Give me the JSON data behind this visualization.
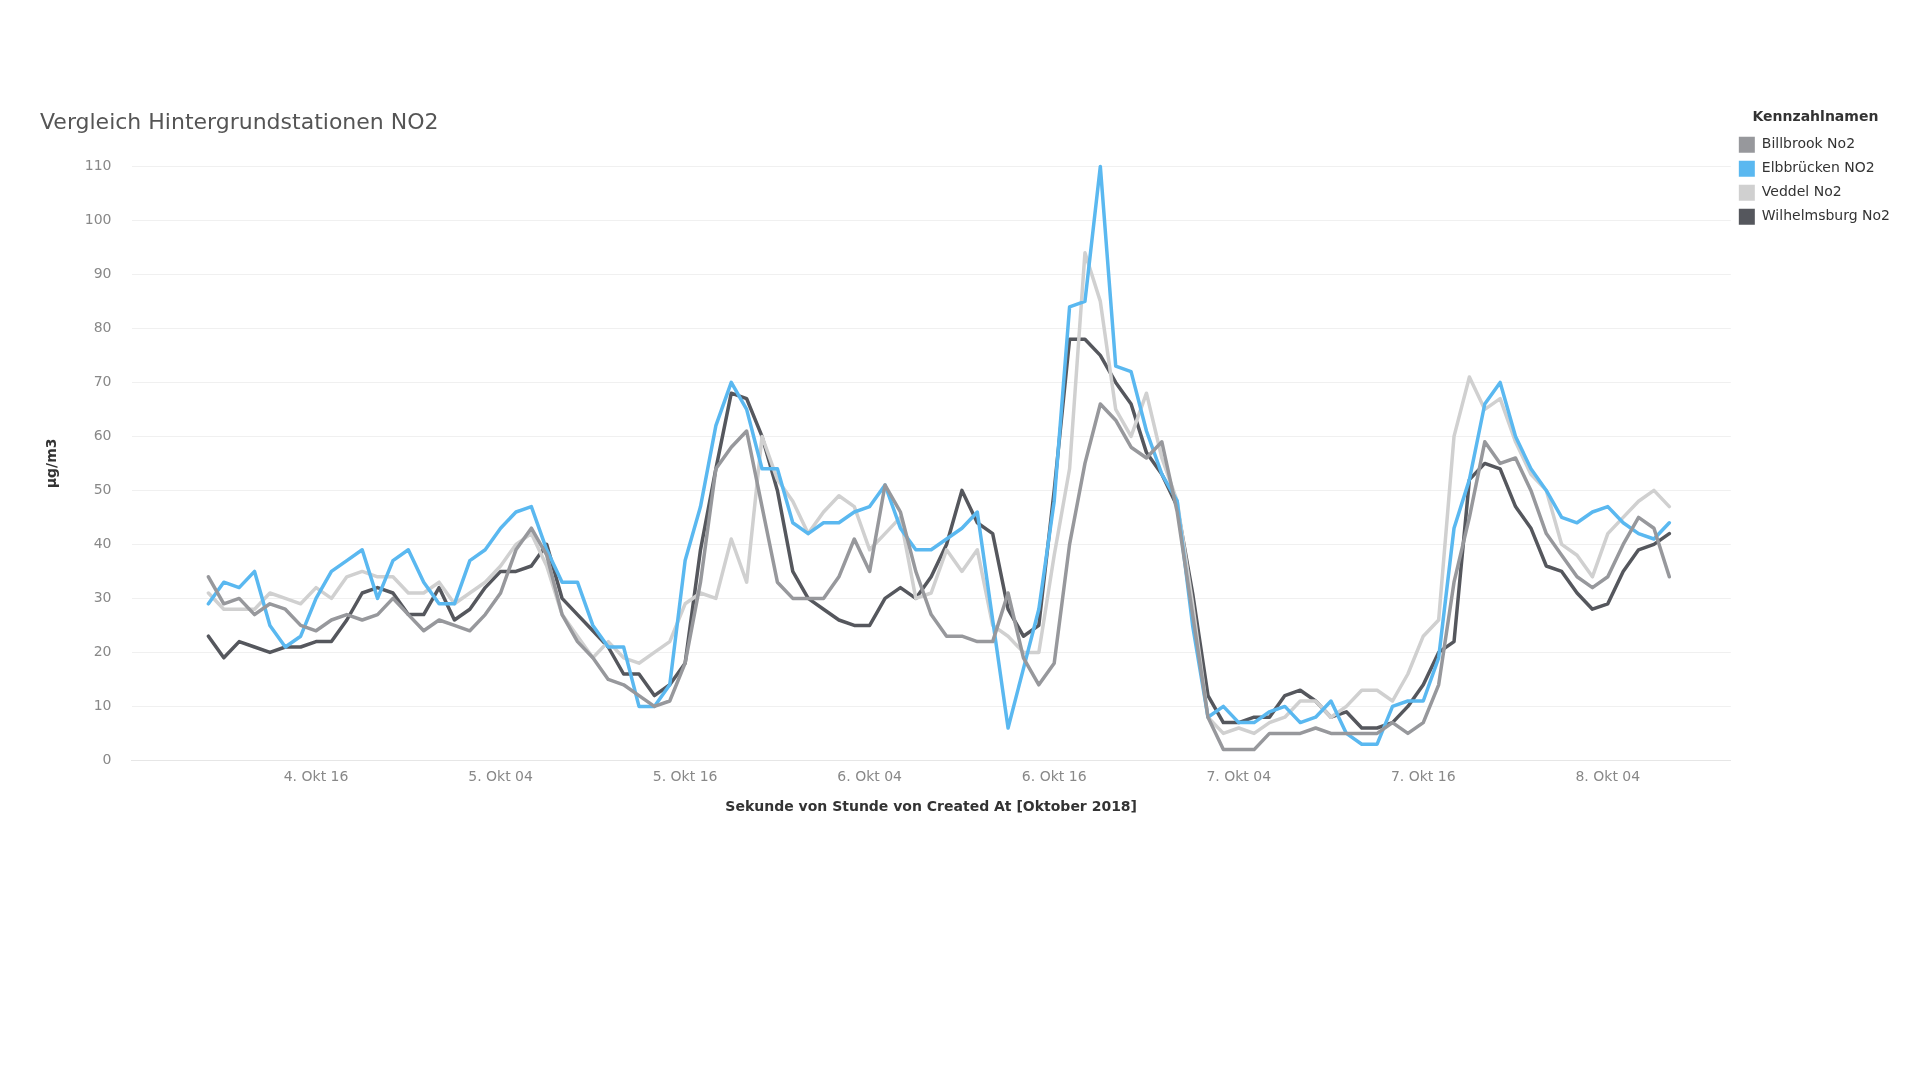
{
  "chart_data": {
    "type": "line",
    "title": "Vergleich Hintergrundstationen NO2",
    "xlabel": "Sekunde von Stunde von Created At [Oktober 2018]",
    "ylabel": "µg/m3",
    "legend_title": "Kennzahlnamen",
    "legend": "top right",
    "grid": "y",
    "marker": "none",
    "line_style": "solid",
    "x": [
      "2018-10-04T09:00",
      "2018-10-04T10:00",
      "2018-10-04T11:00",
      "2018-10-04T12:00",
      "2018-10-04T13:00",
      "2018-10-04T14:00",
      "2018-10-04T15:00",
      "2018-10-04T16:00",
      "2018-10-04T17:00",
      "2018-10-04T18:00",
      "2018-10-04T19:00",
      "2018-10-04T20:00",
      "2018-10-04T21:00",
      "2018-10-04T22:00",
      "2018-10-04T23:00",
      "2018-10-05T00:00",
      "2018-10-05T01:00",
      "2018-10-05T02:00",
      "2018-10-05T03:00",
      "2018-10-05T04:00",
      "2018-10-05T05:00",
      "2018-10-05T06:00",
      "2018-10-05T07:00",
      "2018-10-05T08:00",
      "2018-10-05T09:00",
      "2018-10-05T10:00",
      "2018-10-05T11:00",
      "2018-10-05T12:00",
      "2018-10-05T13:00",
      "2018-10-05T14:00",
      "2018-10-05T15:00",
      "2018-10-05T16:00",
      "2018-10-05T17:00",
      "2018-10-05T18:00",
      "2018-10-05T19:00",
      "2018-10-05T20:00",
      "2018-10-05T21:00",
      "2018-10-05T22:00",
      "2018-10-05T23:00",
      "2018-10-06T00:00",
      "2018-10-06T01:00",
      "2018-10-06T02:00",
      "2018-10-06T03:00",
      "2018-10-06T04:00",
      "2018-10-06T05:00",
      "2018-10-06T06:00",
      "2018-10-06T07:00",
      "2018-10-06T08:00",
      "2018-10-06T09:00",
      "2018-10-06T10:00",
      "2018-10-06T11:00",
      "2018-10-06T12:00",
      "2018-10-06T13:00",
      "2018-10-06T14:00",
      "2018-10-06T15:00",
      "2018-10-06T16:00",
      "2018-10-06T17:00",
      "2018-10-06T18:00",
      "2018-10-06T19:00",
      "2018-10-06T20:00",
      "2018-10-06T21:00",
      "2018-10-06T22:00",
      "2018-10-06T23:00",
      "2018-10-07T00:00",
      "2018-10-07T01:00",
      "2018-10-07T02:00",
      "2018-10-07T03:00",
      "2018-10-07T04:00",
      "2018-10-07T05:00",
      "2018-10-07T06:00",
      "2018-10-07T07:00",
      "2018-10-07T08:00",
      "2018-10-07T09:00",
      "2018-10-07T10:00",
      "2018-10-07T11:00",
      "2018-10-07T12:00",
      "2018-10-07T13:00",
      "2018-10-07T14:00",
      "2018-10-07T15:00",
      "2018-10-07T16:00",
      "2018-10-07T17:00",
      "2018-10-07T18:00",
      "2018-10-07T19:00",
      "2018-10-07T20:00",
      "2018-10-07T21:00",
      "2018-10-07T22:00",
      "2018-10-07T23:00",
      "2018-10-08T00:00",
      "2018-10-08T01:00",
      "2018-10-08T02:00",
      "2018-10-08T03:00",
      "2018-10-08T04:00",
      "2018-10-08T05:00",
      "2018-10-08T06:00",
      "2018-10-08T07:00",
      "2018-10-08T08:00"
    ],
    "xlim": [
      "2018-10-04T04:00",
      "2018-10-08T12:00"
    ],
    "xticks": [
      {
        "value": "2018-10-04T16:00",
        "label": "4. Okt 16"
      },
      {
        "value": "2018-10-05T04:00",
        "label": "5. Okt 04"
      },
      {
        "value": "2018-10-05T16:00",
        "label": "5. Okt 16"
      },
      {
        "value": "2018-10-06T04:00",
        "label": "6. Okt 04"
      },
      {
        "value": "2018-10-06T16:00",
        "label": "6. Okt 16"
      },
      {
        "value": "2018-10-07T04:00",
        "label": "7. Okt 04"
      },
      {
        "value": "2018-10-07T16:00",
        "label": "7. Okt 16"
      },
      {
        "value": "2018-10-08T04:00",
        "label": "8. Okt 04"
      }
    ],
    "ylim": [
      0,
      110
    ],
    "yticks": [
      0,
      10,
      20,
      30,
      40,
      50,
      60,
      70,
      80,
      90,
      100,
      110
    ],
    "series": [
      {
        "name": "Billbrook No2",
        "color": "#97989c",
        "values": [
          34,
          29,
          30,
          27,
          29,
          28,
          25,
          24,
          26,
          27,
          26,
          27,
          30,
          27,
          24,
          26,
          25,
          24,
          27,
          31,
          39,
          43,
          38,
          27,
          22,
          19,
          15,
          14,
          12,
          10,
          11,
          18,
          33,
          54,
          58,
          61,
          47,
          33,
          30,
          30,
          30,
          34,
          41,
          35,
          51,
          46,
          35,
          27,
          23,
          23,
          22,
          22,
          31,
          19,
          14,
          18,
          40,
          55,
          66,
          63,
          58,
          56,
          59,
          46,
          27,
          8,
          2,
          2,
          2,
          5,
          5,
          5,
          6,
          5,
          5,
          5,
          5,
          7,
          5,
          7,
          14,
          33,
          45,
          59,
          55,
          56,
          50,
          42,
          38,
          34,
          32,
          34,
          40,
          45,
          43,
          34
        ]
      },
      {
        "name": "Elbbrücken NO2",
        "color": "#5ab8f0",
        "values": [
          29,
          33,
          32,
          35,
          25,
          21,
          23,
          30,
          35,
          37,
          39,
          30,
          37,
          39,
          33,
          29,
          29,
          37,
          39,
          43,
          46,
          47,
          39,
          33,
          33,
          25,
          21,
          21,
          10,
          10,
          14,
          37,
          47,
          62,
          70,
          65,
          54,
          54,
          44,
          42,
          44,
          44,
          46,
          47,
          51,
          43,
          39,
          39,
          41,
          43,
          46,
          26,
          6,
          17,
          28,
          48,
          84,
          85,
          110,
          73,
          72,
          61,
          53,
          48,
          25,
          8,
          10,
          7,
          7,
          9,
          10,
          7,
          8,
          11,
          5,
          3,
          3,
          10,
          11,
          11,
          19,
          43,
          52,
          66,
          70,
          60,
          54,
          50,
          45,
          44,
          46,
          47,
          44,
          42,
          41,
          44
        ]
      },
      {
        "name": "Veddel No2",
        "color": "#d0d0d0",
        "values": [
          31,
          28,
          28,
          28,
          31,
          30,
          29,
          32,
          30,
          34,
          35,
          34,
          34,
          31,
          31,
          33,
          29,
          31,
          33,
          36,
          40,
          42,
          36,
          27,
          23,
          19,
          22,
          19,
          18,
          20,
          22,
          29,
          31,
          30,
          41,
          33,
          60,
          52,
          48,
          42,
          46,
          49,
          47,
          39,
          42,
          45,
          30,
          31,
          39,
          35,
          39,
          25,
          23,
          20,
          20,
          38,
          54,
          94,
          85,
          65,
          60,
          68,
          56,
          48,
          29,
          8,
          5,
          6,
          5,
          7,
          8,
          11,
          11,
          8,
          10,
          13,
          13,
          11,
          16,
          23,
          26,
          60,
          71,
          65,
          67,
          59,
          53,
          50,
          40,
          38,
          34,
          42,
          45,
          48,
          50,
          47
        ]
      },
      {
        "name": "Wilhelmsburg No2",
        "color": "#55575d",
        "values": [
          23,
          19,
          22,
          21,
          20,
          21,
          21,
          22,
          22,
          26,
          31,
          32,
          31,
          27,
          27,
          32,
          26,
          28,
          32,
          35,
          35,
          36,
          40,
          30,
          27,
          24,
          21,
          16,
          16,
          12,
          14,
          18,
          39,
          54,
          68,
          67,
          60,
          50,
          35,
          30,
          28,
          26,
          25,
          25,
          30,
          32,
          30,
          34,
          40,
          50,
          44,
          42,
          28,
          23,
          25,
          50,
          78,
          78,
          75,
          70,
          66,
          57,
          53,
          47,
          31,
          12,
          7,
          7,
          8,
          8,
          12,
          13,
          11,
          8,
          9,
          6,
          6,
          7,
          10,
          14,
          20,
          22,
          52,
          55,
          54,
          47,
          43,
          36,
          35,
          31,
          28,
          29,
          35,
          39,
          40,
          42
        ]
      }
    ]
  }
}
